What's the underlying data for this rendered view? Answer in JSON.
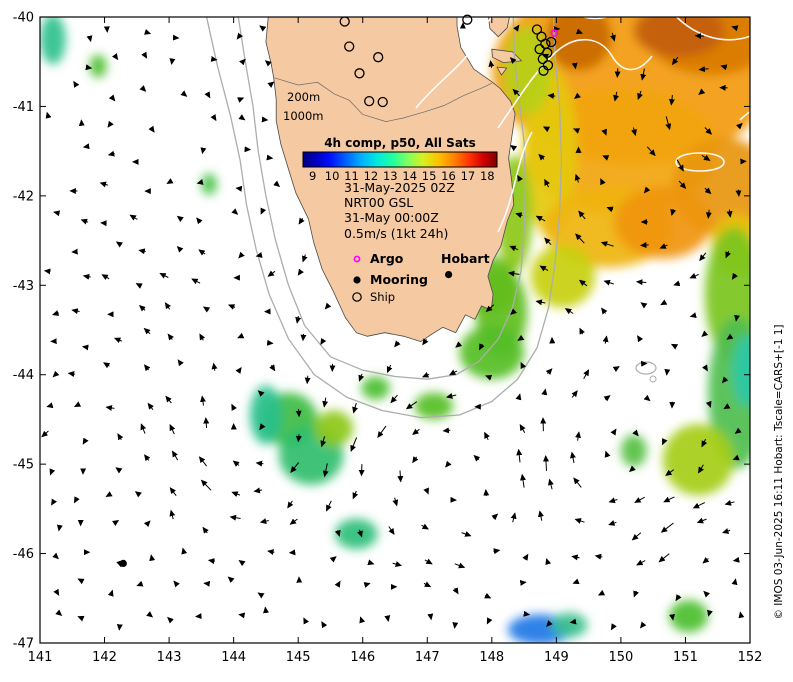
{
  "map": {
    "plot": {
      "lon_min": 141,
      "lon_max": 152,
      "lat_min": -47,
      "lat_max": -40
    },
    "axes": {
      "x_ticks": [
        141,
        142,
        143,
        144,
        145,
        146,
        147,
        148,
        149,
        150,
        151,
        152
      ],
      "y_ticks": [
        -40,
        -41,
        -42,
        -43,
        -44,
        -45,
        -46,
        -47
      ]
    },
    "colorbar": {
      "title": "4h comp, p50, All Sats",
      "title_color": "#1F7A1F",
      "ticks": [
        9,
        10,
        11,
        12,
        13,
        14,
        15,
        16,
        17,
        18
      ],
      "stops": [
        [
          0,
          "#00007F"
        ],
        [
          0.07,
          "#0000C4"
        ],
        [
          0.14,
          "#0010FF"
        ],
        [
          0.22,
          "#0060FF"
        ],
        [
          0.3,
          "#00B0FF"
        ],
        [
          0.38,
          "#00E8E0"
        ],
        [
          0.46,
          "#20FFA0"
        ],
        [
          0.54,
          "#80FF60"
        ],
        [
          0.62,
          "#D8F020"
        ],
        [
          0.7,
          "#FFC000"
        ],
        [
          0.78,
          "#FF8000"
        ],
        [
          0.86,
          "#FF3000"
        ],
        [
          0.93,
          "#D00000"
        ],
        [
          1,
          "#7F0000"
        ]
      ]
    },
    "annotations": {
      "timestamp": "31-May-2025 02Z",
      "model": "NRT00 GSL",
      "model_time": "31-May 00:00Z",
      "vector_scale": "0.5m/s (1kt 24h)",
      "contour_200": "200m",
      "contour_1000": "1000m"
    },
    "legend": [
      {
        "label": "Argo"
      },
      {
        "label": "Mooring"
      },
      {
        "label": "Ship"
      }
    ],
    "city": {
      "name": "Hobart",
      "lon": 147.33,
      "lat": -42.88
    },
    "markers": {
      "moorings": [
        {
          "lon": 142.29,
          "lat": -46.11
        }
      ],
      "argo": [
        {
          "lon": 148.97,
          "lat": -40.18
        }
      ],
      "ships": [
        [
          145.72,
          -40.05
        ],
        [
          145.79,
          -40.33
        ],
        [
          145.95,
          -40.63
        ],
        [
          146.1,
          -40.94
        ],
        [
          146.24,
          -40.45
        ],
        [
          146.31,
          -40.95
        ],
        [
          147.62,
          -40.03
        ],
        [
          148.7,
          -40.14
        ],
        [
          148.77,
          -40.22
        ],
        [
          148.83,
          -40.3
        ],
        [
          148.86,
          -40.4
        ],
        [
          148.79,
          -40.47
        ],
        [
          148.87,
          -40.54
        ],
        [
          148.8,
          -40.6
        ],
        [
          148.92,
          -40.28
        ],
        [
          148.74,
          -40.36
        ]
      ]
    },
    "sst_patches": [
      {
        "lon": 150.2,
        "lat": -40.6,
        "rx": 2.2,
        "ry": 1.05,
        "c": "#F29B0B"
      },
      {
        "lon": 151.4,
        "lat": -40.2,
        "rx": 1.0,
        "ry": 0.45,
        "c": "#D97B06"
      },
      {
        "lon": 149.35,
        "lat": -40.22,
        "rx": 0.5,
        "ry": 0.38,
        "c": "#C96A05"
      },
      {
        "lon": 150.9,
        "lat": -40.15,
        "rx": 0.7,
        "ry": 0.3,
        "c": "#C35E08"
      },
      {
        "lon": 150.0,
        "lat": -41.5,
        "rx": 1.5,
        "ry": 0.7,
        "c": "#F2A50B"
      },
      {
        "lon": 151.6,
        "lat": -41.9,
        "rx": 0.8,
        "ry": 0.55,
        "c": "#E8960A"
      },
      {
        "lon": 148.9,
        "lat": -41.5,
        "rx": 0.42,
        "ry": 0.95,
        "c": "#E5C90F"
      },
      {
        "lon": 148.55,
        "lat": -40.6,
        "rx": 0.38,
        "ry": 0.5,
        "c": "#B7D013"
      },
      {
        "lon": 149.8,
        "lat": -42.35,
        "rx": 1.0,
        "ry": 0.45,
        "c": "#EFB40D"
      },
      {
        "lon": 150.65,
        "lat": -42.3,
        "rx": 0.75,
        "ry": 0.4,
        "c": "#F0950A"
      },
      {
        "lon": 151.8,
        "lat": -42.55,
        "rx": 0.4,
        "ry": 0.35,
        "c": "#E8C20E"
      },
      {
        "lon": 149.1,
        "lat": -42.9,
        "rx": 0.5,
        "ry": 0.35,
        "c": "#C8D012"
      },
      {
        "lon": 148.35,
        "lat": -42.2,
        "rx": 0.28,
        "ry": 0.65,
        "c": "#8CC816"
      },
      {
        "lon": 148.15,
        "lat": -43.3,
        "rx": 0.4,
        "ry": 0.5,
        "c": "#5FBE1E"
      },
      {
        "lon": 148.0,
        "lat": -43.75,
        "rx": 0.5,
        "ry": 0.3,
        "c": "#55BE25"
      },
      {
        "lon": 147.95,
        "lat": -43.0,
        "rx": 0.45,
        "ry": 0.33,
        "c": "#63BE1E"
      },
      {
        "lon": 151.75,
        "lat": -43.1,
        "rx": 0.45,
        "ry": 0.75,
        "c": "#7AC61C"
      },
      {
        "lon": 151.8,
        "lat": -44.2,
        "rx": 0.45,
        "ry": 0.85,
        "c": "#4FBE4E"
      },
      {
        "lon": 151.95,
        "lat": -43.95,
        "rx": 0.22,
        "ry": 0.4,
        "c": "#2EC8A8"
      },
      {
        "lon": 151.2,
        "lat": -44.95,
        "rx": 0.55,
        "ry": 0.4,
        "c": "#A5CE14"
      },
      {
        "lon": 150.2,
        "lat": -44.85,
        "rx": 0.2,
        "ry": 0.18,
        "c": "#55C040"
      },
      {
        "lon": 144.85,
        "lat": -44.5,
        "rx": 0.45,
        "ry": 0.3,
        "c": "#3DBC42"
      },
      {
        "lon": 145.2,
        "lat": -44.9,
        "rx": 0.5,
        "ry": 0.33,
        "c": "#2FBE6E"
      },
      {
        "lon": 144.5,
        "lat": -44.45,
        "rx": 0.25,
        "ry": 0.33,
        "c": "#28C08C"
      },
      {
        "lon": 145.55,
        "lat": -44.6,
        "rx": 0.3,
        "ry": 0.2,
        "c": "#8CC816"
      },
      {
        "lon": 145.9,
        "lat": -45.78,
        "rx": 0.33,
        "ry": 0.17,
        "c": "#2EBE7A"
      },
      {
        "lon": 148.75,
        "lat": -46.85,
        "rx": 0.5,
        "ry": 0.17,
        "c": "#1E78E6"
      },
      {
        "lon": 149.2,
        "lat": -46.8,
        "rx": 0.28,
        "ry": 0.14,
        "c": "#3CC08C"
      },
      {
        "lon": 151.05,
        "lat": -46.7,
        "rx": 0.3,
        "ry": 0.18,
        "c": "#49BE2E"
      },
      {
        "lon": 141.2,
        "lat": -40.25,
        "rx": 0.2,
        "ry": 0.28,
        "c": "#2EC08C"
      },
      {
        "lon": 141.9,
        "lat": -40.55,
        "rx": 0.13,
        "ry": 0.13,
        "c": "#49BE2E"
      },
      {
        "lon": 143.62,
        "lat": -41.87,
        "rx": 0.12,
        "ry": 0.12,
        "c": "#40C040"
      },
      {
        "lon": 147.1,
        "lat": -44.35,
        "rx": 0.3,
        "ry": 0.15,
        "c": "#55BE25"
      },
      {
        "lon": 146.2,
        "lat": -44.15,
        "rx": 0.22,
        "ry": 0.13,
        "c": "#49BE2E"
      }
    ],
    "credit": "© IMOS 03-Jun-2025 16:11 Hobart: Tscale=CARS+[-1 1]"
  }
}
